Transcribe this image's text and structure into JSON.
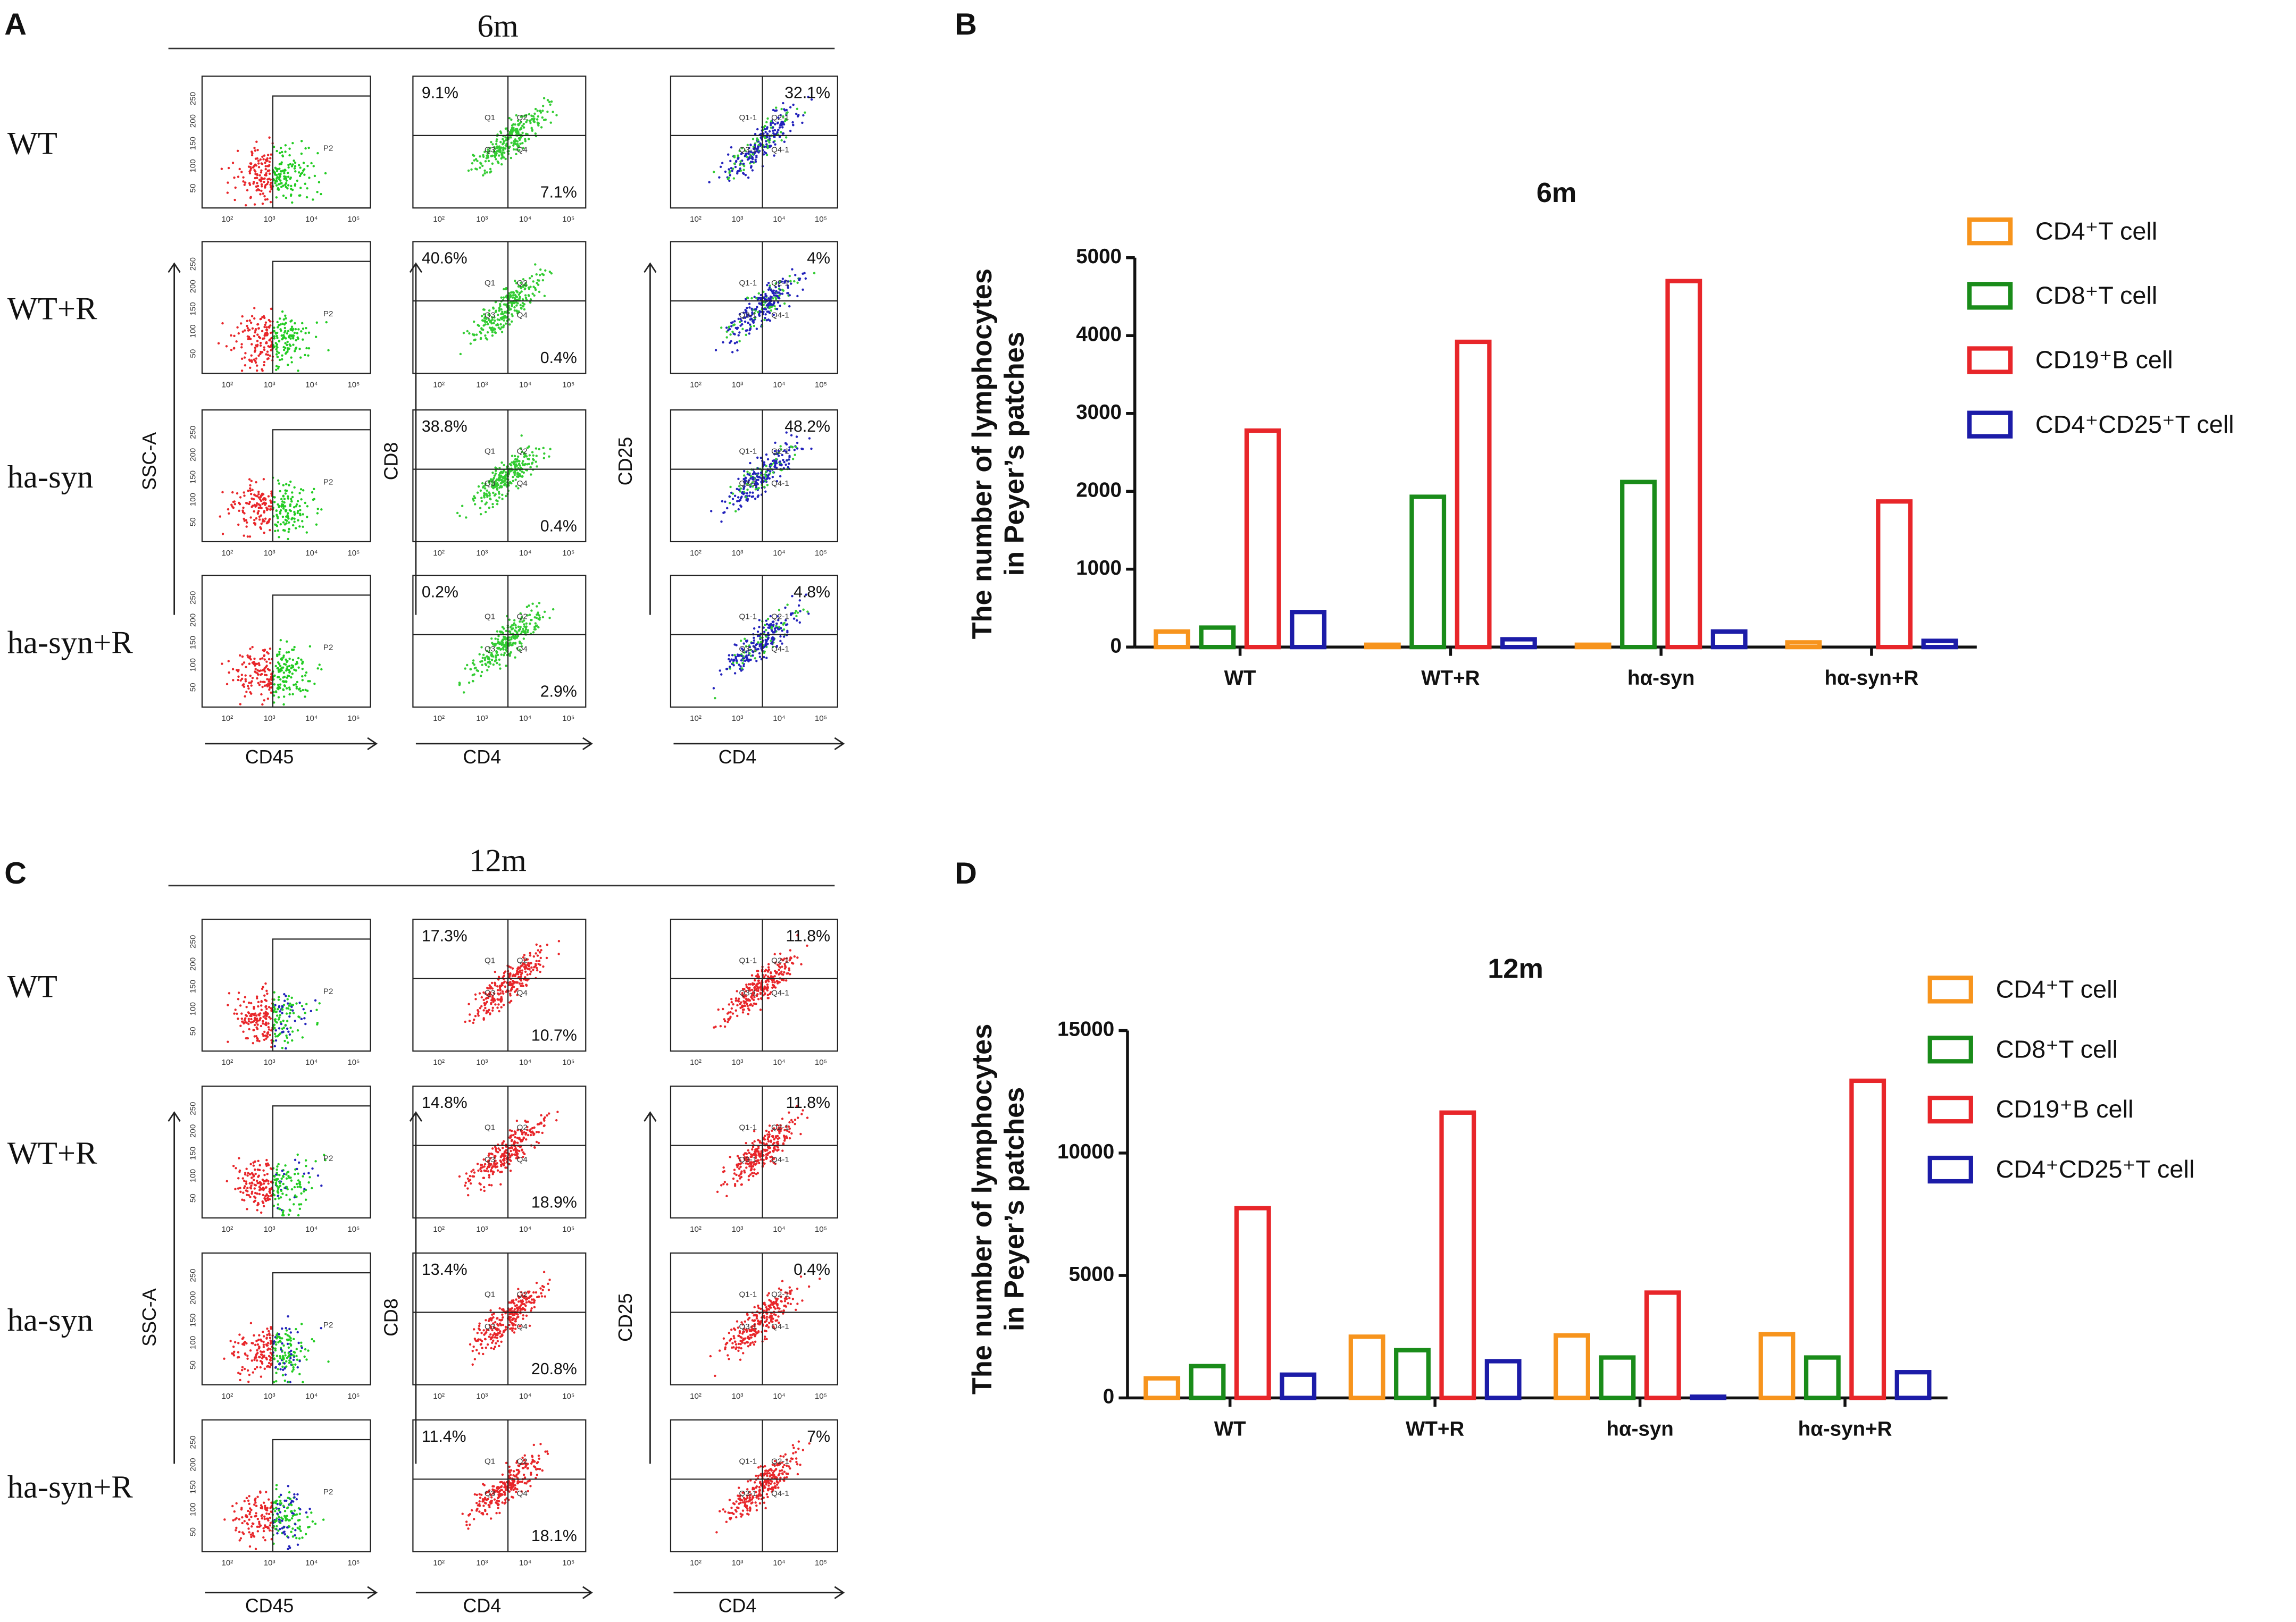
{
  "flow_common": {
    "gate_label": "P2",
    "quadrants": [
      "Q1",
      "Q2",
      "Q3",
      "Q4"
    ],
    "quadrants_1": [
      "Q1-1",
      "Q2-1",
      "Q3-1",
      "Q4-1"
    ],
    "log_ticks": [
      "10²",
      "10³",
      "10⁴",
      "10⁵"
    ],
    "ssc_ticks": [
      "50",
      "100",
      "150",
      "200",
      "250"
    ]
  },
  "flow_panels": [
    {
      "letter": "A",
      "title": "6m",
      "rows": [
        "WT",
        "WT+R",
        "ha-syn",
        "ha-syn+R"
      ],
      "x_labels": [
        "CD45",
        "CD4",
        "CD4"
      ],
      "y_labels": [
        "SSC-A",
        "CD8",
        "CD25"
      ],
      "col2_percent": [
        [
          "9.1%",
          "7.1%"
        ],
        [
          "40.6%",
          "0.4%"
        ],
        [
          "38.8%",
          "0.4%"
        ],
        [
          "0.2%",
          "2.9%"
        ]
      ],
      "col3_percent": [
        "32.1%",
        "4%",
        "48.2%",
        "4.8%"
      ]
    },
    {
      "letter": "C",
      "title": "12m",
      "rows": [
        "WT",
        "WT+R",
        "ha-syn",
        "ha-syn+R"
      ],
      "x_labels": [
        "CD45",
        "CD4",
        "CD4"
      ],
      "y_labels": [
        "SSC-A",
        "CD8",
        "CD25"
      ],
      "col2_percent": [
        [
          "17.3%",
          "10.7%"
        ],
        [
          "14.8%",
          "18.9%"
        ],
        [
          "13.4%",
          "20.8%"
        ],
        [
          "11.4%",
          "18.1%"
        ]
      ],
      "col3_percent": [
        "11.8%",
        "11.8%",
        "0.4%",
        "7%"
      ]
    }
  ],
  "chart_data": [
    {
      "type": "bar",
      "letter": "B",
      "title": "6m",
      "y_label": [
        "The number of lymphocytes",
        "in Peyer’s patches"
      ],
      "categories": [
        "WT",
        "WT+R",
        "hα-syn",
        "hα-syn+R"
      ],
      "series": [
        {
          "name": "CD4⁺T cell",
          "color": "#f7941d",
          "values": [
            200,
            30,
            30,
            60
          ]
        },
        {
          "name": "CD8⁺T cell",
          "color": "#1a8c1a",
          "values": [
            250,
            1930,
            2120,
            0
          ]
        },
        {
          "name": "CD19⁺B cell",
          "color": "#e8262a",
          "values": [
            2780,
            3920,
            4700,
            1870
          ]
        },
        {
          "name": "CD4⁺CD25⁺T cell",
          "color": "#1c1ca8",
          "values": [
            450,
            100,
            200,
            80
          ]
        }
      ],
      "ylim": [
        0,
        5000
      ],
      "yticks": [
        0,
        1000,
        2000,
        3000,
        4000,
        5000
      ],
      "legend": "right"
    },
    {
      "type": "bar",
      "letter": "D",
      "title": "12m",
      "y_label": [
        "The number of lymphocytes",
        "in Peyer’s patches"
      ],
      "categories": [
        "WT",
        "WT+R",
        "hα-syn",
        "hα-syn+R"
      ],
      "series": [
        {
          "name": "CD4⁺T cell",
          "color": "#f7941d",
          "values": [
            800,
            2500,
            2550,
            2600
          ]
        },
        {
          "name": "CD8⁺T cell",
          "color": "#1a8c1a",
          "values": [
            1300,
            1950,
            1650,
            1650
          ]
        },
        {
          "name": "CD19⁺B cell",
          "color": "#e8262a",
          "values": [
            7750,
            11650,
            4300,
            12950
          ]
        },
        {
          "name": "CD4⁺CD25⁺T cell",
          "color": "#1c1ca8",
          "values": [
            950,
            1500,
            50,
            1050
          ]
        }
      ],
      "ylim": [
        0,
        15000
      ],
      "yticks": [
        0,
        5000,
        10000,
        15000
      ],
      "legend": "right"
    }
  ]
}
